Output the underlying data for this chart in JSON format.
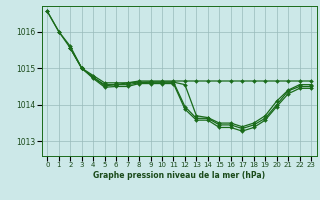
{
  "background_color": "#cce8e8",
  "plot_bg_color": "#cce8e8",
  "line_color": "#1a6b1a",
  "grid_color": "#99bbbb",
  "xlabel": "Graphe pression niveau de la mer (hPa)",
  "xlabel_color": "#1a4a1a",
  "tick_color": "#1a4a1a",
  "yticks": [
    1013,
    1014,
    1015,
    1016
  ],
  "xlim": [
    -0.5,
    23.5
  ],
  "ylim": [
    1012.6,
    1016.7
  ],
  "series": [
    {
      "x": [
        0,
        1,
        2,
        3,
        4,
        5,
        6,
        7,
        8,
        9,
        10,
        11,
        12,
        13,
        14,
        15,
        16,
        17,
        18,
        19,
        20,
        21,
        22,
        23
      ],
      "y": [
        1016.55,
        1016.0,
        1015.6,
        1015.0,
        1014.8,
        1014.6,
        1014.6,
        1014.6,
        1014.65,
        1014.65,
        1014.65,
        1014.65,
        1014.65,
        1014.65,
        1014.65,
        1014.65,
        1014.65,
        1014.65,
        1014.65,
        1014.65,
        1014.65,
        1014.65,
        1014.65,
        1014.65
      ]
    },
    {
      "x": [
        0,
        1,
        2,
        3,
        4,
        5,
        6,
        7,
        8,
        9,
        10,
        11,
        12,
        13,
        14,
        15,
        16,
        17,
        18,
        19,
        20,
        21,
        22,
        23
      ],
      "y": [
        1016.55,
        1016.0,
        1015.55,
        1015.0,
        1014.75,
        1014.55,
        1014.55,
        1014.6,
        1014.62,
        1014.62,
        1014.62,
        1014.62,
        1014.55,
        1013.7,
        1013.65,
        1013.5,
        1013.5,
        1013.4,
        1013.5,
        1013.7,
        1014.1,
        1014.4,
        1014.55,
        1014.55
      ]
    },
    {
      "x": [
        2,
        3,
        4,
        5,
        6,
        7,
        8,
        9,
        10,
        11,
        12,
        13,
        14,
        15,
        16,
        17,
        18,
        19,
        20,
        21,
        22,
        23
      ],
      "y": [
        1015.55,
        1015.0,
        1014.75,
        1014.52,
        1014.55,
        1014.55,
        1014.6,
        1014.62,
        1014.62,
        1014.62,
        1013.95,
        1013.63,
        1013.63,
        1013.45,
        1013.45,
        1013.35,
        1013.45,
        1013.63,
        1014.0,
        1014.38,
        1014.5,
        1014.5
      ]
    },
    {
      "x": [
        2,
        3,
        4,
        5,
        6,
        7,
        8,
        9,
        10,
        11,
        12,
        13,
        14,
        15,
        16,
        17,
        18,
        19,
        20,
        21,
        22,
        23
      ],
      "y": [
        1015.55,
        1015.0,
        1014.72,
        1014.48,
        1014.5,
        1014.5,
        1014.58,
        1014.58,
        1014.58,
        1014.58,
        1013.88,
        1013.58,
        1013.58,
        1013.38,
        1013.38,
        1013.28,
        1013.38,
        1013.58,
        1013.95,
        1014.3,
        1014.45,
        1014.45
      ]
    }
  ]
}
